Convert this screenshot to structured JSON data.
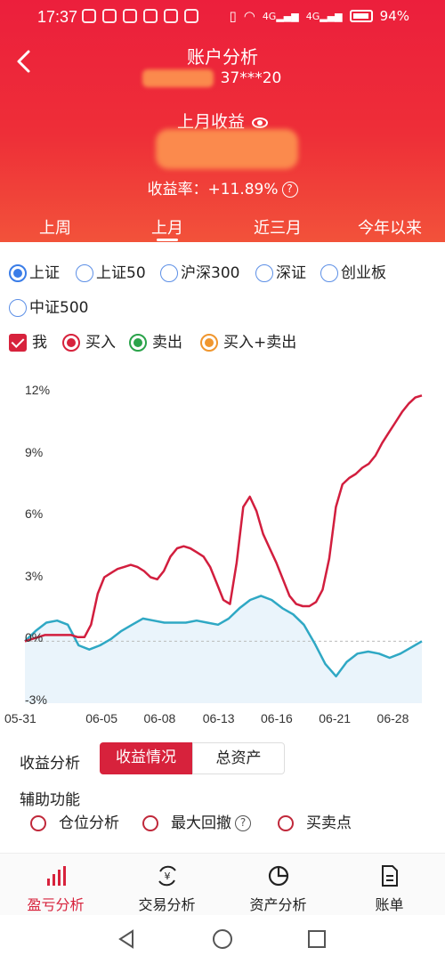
{
  "status_bar": {
    "time": "17:37",
    "battery": "94%",
    "signal_1": "4G",
    "signal_2": "4G"
  },
  "header": {
    "title": "账户分析",
    "account": "37***20",
    "month_label": "上月收益",
    "return_rate": "收益率：+11.89%",
    "tabs": [
      {
        "label": "上周",
        "active": false
      },
      {
        "label": "上月",
        "active": true
      },
      {
        "label": "近三月",
        "active": false
      },
      {
        "label": "今年以来",
        "active": false
      }
    ]
  },
  "benchmarks": {
    "options": [
      {
        "label": "上证",
        "selected": true
      },
      {
        "label": "上证50",
        "selected": false
      },
      {
        "label": "沪深300",
        "selected": false
      },
      {
        "label": "深证",
        "selected": false
      },
      {
        "label": "创业板",
        "selected": false
      },
      {
        "label": "中证500",
        "selected": false
      }
    ]
  },
  "legend": {
    "me": "我",
    "buy": "买入",
    "sell": "卖出",
    "both": "买入+卖出",
    "colors": {
      "me": "#d7223c",
      "buy": "#d7223c",
      "sell": "#2aa34a",
      "both": "#f0962e"
    }
  },
  "chart_data": {
    "type": "line",
    "ylim": [
      -3,
      12
    ],
    "y_ticks": [
      "12%",
      "9%",
      "6%",
      "3%",
      "0%",
      "-3%"
    ],
    "x_ticks": [
      "05-31",
      "06-05",
      "06-08",
      "06-13",
      "06-16",
      "06-21",
      "06-28"
    ],
    "series": [
      {
        "color": "#d21e3e",
        "x": [
          0,
          0.5,
          1,
          1.5,
          2,
          2.5,
          3,
          3.5,
          4,
          4.5,
          5,
          5.5,
          6,
          6.5,
          7,
          7.5,
          8,
          8.5,
          9,
          9.5,
          10,
          10.5,
          11,
          11.5,
          12,
          12.5,
          13,
          13.5,
          14,
          14.5,
          15,
          15.5,
          16,
          16.5,
          17,
          17.5,
          18,
          18.5,
          19,
          19.5,
          20,
          20.5,
          21,
          21.5,
          22,
          22.5,
          23,
          23.5,
          24,
          24.5,
          25,
          25.5,
          26,
          26.5,
          27,
          27.5,
          28,
          28.5,
          29,
          29.5,
          30,
          30.5,
          31,
          31.5,
          32,
          32.5,
          33,
          33.5,
          34,
          34.5,
          35,
          35.5,
          36,
          36.5,
          37
        ],
        "values": [
          0.0,
          0.1,
          0.2,
          0.3,
          0.3,
          0.3,
          0.3,
          0.3,
          0.2,
          0.2,
          0.8,
          2.3,
          3.1,
          3.3,
          3.5,
          3.6,
          3.7,
          3.6,
          3.4,
          3.1,
          3.0,
          3.4,
          4.1,
          4.5,
          4.6,
          4.5,
          4.3,
          4.1,
          3.6,
          2.8,
          2.0,
          1.8,
          3.8,
          6.5,
          7.0,
          6.3,
          5.2,
          4.5,
          3.8,
          3.0,
          2.2,
          1.8,
          1.7,
          1.7,
          1.9,
          2.5,
          4.0,
          6.5,
          7.6,
          7.9,
          8.1,
          8.4,
          8.6,
          9.0,
          9.6,
          10.1,
          10.6,
          11.1,
          11.5,
          11.8,
          11.9,
          11.9,
          11.9,
          11.9,
          11.9,
          11.9,
          11.9,
          11.9,
          11.9,
          11.9,
          11.9,
          11.9,
          11.9,
          11.9,
          11.9
        ]
      },
      {
        "color": "#2fa8c4",
        "x": [
          0,
          1,
          2,
          3,
          4,
          5,
          6,
          7,
          8,
          9,
          10,
          11,
          12,
          13,
          14,
          15,
          16,
          17,
          18,
          19,
          20,
          21,
          22,
          23,
          24,
          25,
          26,
          27,
          28,
          29,
          30,
          31,
          32,
          33,
          34,
          35,
          36,
          37
        ],
        "values": [
          0.0,
          0.5,
          0.9,
          1.0,
          0.8,
          -0.2,
          -0.4,
          -0.2,
          0.1,
          0.5,
          0.8,
          1.1,
          1.0,
          0.9,
          0.9,
          0.9,
          1.0,
          0.9,
          0.8,
          1.1,
          1.6,
          2.0,
          2.2,
          2.0,
          1.6,
          1.3,
          0.8,
          -0.1,
          -1.1,
          -1.7,
          -1.0,
          -0.6,
          -0.5,
          -0.6,
          -0.8,
          -0.6,
          -0.3,
          0.0
        ]
      }
    ]
  },
  "analysis": {
    "label": "收益分析",
    "seg_active": "收益情况",
    "seg_other": "总资产"
  },
  "assist": {
    "label": "辅助功能",
    "items": [
      "仓位分析",
      "最大回撤",
      "买卖点"
    ]
  },
  "bottom_nav": [
    {
      "label": "盈亏分析",
      "active": true
    },
    {
      "label": "交易分析",
      "active": false
    },
    {
      "label": "资产分析",
      "active": false
    },
    {
      "label": "账单",
      "active": false
    }
  ]
}
